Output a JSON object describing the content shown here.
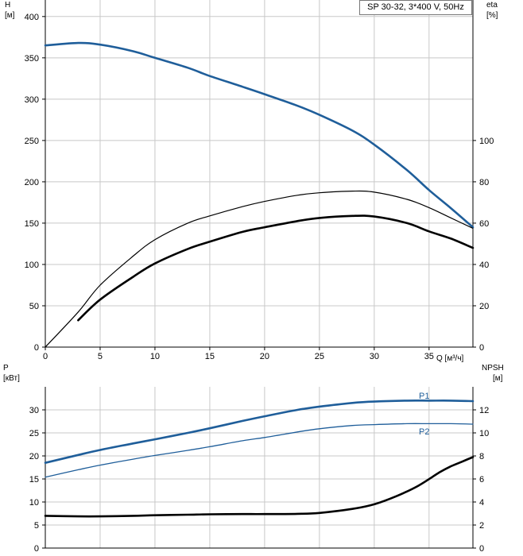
{
  "chart_data": [
    {
      "type": "line",
      "title": "SP 30-32, 3*400 V, 50Hz",
      "xlabel": "Q [м³/ч]",
      "xlim": [
        0,
        39
      ],
      "xticks": [
        "0",
        "5",
        "10",
        "15",
        "20",
        "25",
        "30",
        "35"
      ],
      "y_left": {
        "label": "H",
        "unit": "[м]",
        "ylim": [
          0,
          420
        ],
        "ticks": [
          "0",
          "50",
          "100",
          "150",
          "200",
          "250",
          "300",
          "350",
          "400"
        ]
      },
      "y_right": {
        "label": "eta",
        "unit": "[%]",
        "ylim": [
          0,
          168
        ],
        "ticks": [
          "0",
          "20",
          "40",
          "60",
          "80",
          "100"
        ]
      },
      "grid": true,
      "series": [
        {
          "axis": "left",
          "color": "#1f5e9a",
          "width": 2.6,
          "x": [
            0,
            3,
            5,
            8,
            10,
            13,
            15,
            18,
            20,
            23,
            25,
            28,
            30,
            33,
            35,
            37,
            39
          ],
          "y": [
            365,
            368,
            366,
            358,
            350,
            338,
            328,
            315,
            306,
            292,
            281,
            262,
            245,
            214,
            190,
            168,
            145
          ]
        },
        {
          "axis": "left",
          "color": "#1f5e9a",
          "width": 1.0,
          "x": [
            0,
            3
          ],
          "y": [
            365,
            368
          ]
        },
        {
          "axis": "right",
          "color": "#000000",
          "width": 1.2,
          "x": [
            0,
            3,
            5,
            8,
            10,
            13,
            15,
            18,
            20,
            23,
            25,
            28,
            30,
            33,
            35,
            37,
            39
          ],
          "y": [
            0,
            17,
            30,
            44,
            52,
            60,
            63.5,
            68,
            70.5,
            73.5,
            74.7,
            75.5,
            75,
            71.5,
            67.5,
            62.5,
            57.5
          ]
        },
        {
          "axis": "right",
          "color": "#000000",
          "width": 2.6,
          "x": [
            3,
            5,
            8,
            10,
            13,
            15,
            18,
            20,
            23,
            25,
            28,
            30,
            33,
            35,
            37,
            39
          ],
          "y": [
            13,
            23,
            34,
            40.5,
            47.5,
            51,
            55.8,
            58,
            61,
            62.5,
            63.5,
            63.2,
            60,
            56,
            52.5,
            48
          ]
        }
      ]
    },
    {
      "type": "line",
      "xlim": [
        0,
        39
      ],
      "y_left": {
        "label": "P",
        "unit": "[кВт]",
        "ylim": [
          0,
          35
        ],
        "ticks": [
          "0",
          "5",
          "10",
          "15",
          "20",
          "25",
          "30"
        ]
      },
      "y_right": {
        "label": "NPSH",
        "unit": "[м]",
        "ylim": [
          0,
          14
        ],
        "ticks": [
          "0",
          "2",
          "4",
          "6",
          "8",
          "10",
          "12"
        ]
      },
      "grid": true,
      "series": [
        {
          "name": "P1",
          "axis": "left",
          "color": "#1f5e9a",
          "width": 2.6,
          "x": [
            0,
            3,
            5,
            8,
            10,
            13,
            15,
            18,
            20,
            23,
            25,
            28,
            30,
            33,
            35,
            37,
            39
          ],
          "y": [
            18.5,
            20.2,
            21.3,
            22.7,
            23.6,
            25.0,
            26.0,
            27.6,
            28.6,
            30.0,
            30.7,
            31.5,
            31.8,
            32.0,
            32.0,
            32.0,
            31.9
          ]
        },
        {
          "name": "P2",
          "axis": "left",
          "color": "#1f5e9a",
          "width": 1.3,
          "x": [
            0,
            3,
            5,
            8,
            10,
            13,
            15,
            18,
            20,
            23,
            25,
            28,
            30,
            33,
            35,
            37,
            39
          ],
          "y": [
            15.4,
            17.0,
            18.0,
            19.3,
            20.1,
            21.2,
            22.0,
            23.3,
            24.0,
            25.2,
            25.9,
            26.6,
            26.8,
            27.0,
            27.0,
            27.0,
            26.9
          ]
        },
        {
          "axis": "right",
          "color": "#000000",
          "width": 2.6,
          "x": [
            0,
            3,
            5,
            8,
            10,
            13,
            15,
            18,
            20,
            23,
            25,
            28,
            30,
            32,
            34,
            36,
            37,
            38,
            39
          ],
          "y": [
            2.8,
            2.75,
            2.75,
            2.8,
            2.85,
            2.9,
            2.93,
            2.95,
            2.95,
            2.97,
            3.05,
            3.4,
            3.8,
            4.5,
            5.4,
            6.6,
            7.1,
            7.5,
            7.9
          ]
        }
      ]
    }
  ]
}
